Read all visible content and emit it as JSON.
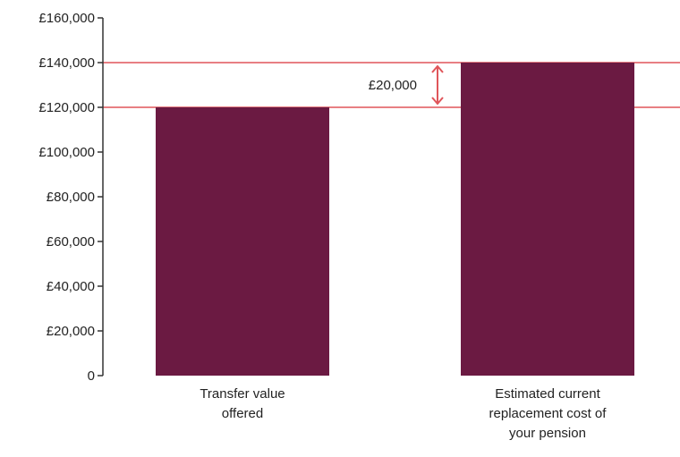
{
  "chart_data": {
    "type": "bar",
    "title": "",
    "xlabel": "",
    "ylabel": "",
    "ylim": [
      0,
      160000
    ],
    "y_ticks": [
      {
        "value": 0,
        "label": "0"
      },
      {
        "value": 20000,
        "label": "£20,000"
      },
      {
        "value": 40000,
        "label": "£40,000"
      },
      {
        "value": 60000,
        "label": "£60,000"
      },
      {
        "value": 80000,
        "label": "£80,000"
      },
      {
        "value": 100000,
        "label": "£100,000"
      },
      {
        "value": 120000,
        "label": "£120,000"
      },
      {
        "value": 140000,
        "label": "£140,000"
      },
      {
        "value": 160000,
        "label": "£160,000"
      }
    ],
    "categories": [
      [
        "Transfer value",
        "offered"
      ],
      [
        "Estimated current",
        "replacement cost of",
        "your pension"
      ]
    ],
    "values": [
      120000,
      140000
    ],
    "reference_lines": [
      120000,
      140000
    ],
    "annotation": {
      "label": "£20,000",
      "from": 120000,
      "to": 140000
    },
    "grid": false,
    "legend": "none",
    "colors": {
      "bar": "#6b1a42",
      "reference": "#e0555a",
      "axis": "#333333"
    }
  }
}
